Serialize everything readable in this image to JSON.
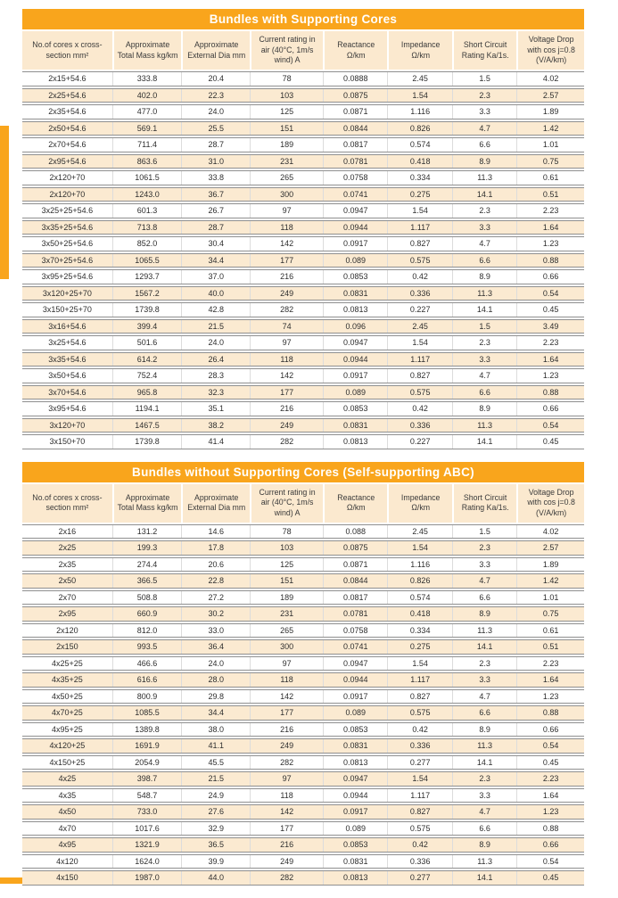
{
  "styles": {
    "accent_orange": "#F9A51C",
    "header_cream": "#FBE9CF",
    "row_cream": "#FBEAD1",
    "title_text": "#FFFFFF",
    "body_text": "#2E2E2E"
  },
  "tables": [
    {
      "title": "Bundles with Supporting Cores",
      "columns": [
        "No.of cores x cross-section mm²",
        "Approximate Total Mass kg/km",
        "Approximate External Dia mm",
        "Current rating in air (40°C, 1m/s wind) A",
        "Reactance Ω/km",
        "Impedance Ω/km",
        "Short Circuit Rating Ka/1s.",
        "Voltage Drop with cos j=0.8 (V/A/km)"
      ],
      "rows": [
        [
          "2x15+54.6",
          "333.8",
          "20.4",
          "78",
          "0.0888",
          "2.45",
          "1.5",
          "4.02"
        ],
        [
          "2x25+54.6",
          "402.0",
          "22.3",
          "103",
          "0.0875",
          "1.54",
          "2.3",
          "2.57"
        ],
        [
          "2x35+54.6",
          "477.0",
          "24.0",
          "125",
          "0.0871",
          "1.116",
          "3.3",
          "1.89"
        ],
        [
          "2x50+54.6",
          "569.1",
          "25.5",
          "151",
          "0.0844",
          "0.826",
          "4.7",
          "1.42"
        ],
        [
          "2x70+54.6",
          "711.4",
          "28.7",
          "189",
          "0.0817",
          "0.574",
          "6.6",
          "1.01"
        ],
        [
          "2x95+54.6",
          "863.6",
          "31.0",
          "231",
          "0.0781",
          "0.418",
          "8.9",
          "0.75"
        ],
        [
          "2x120+70",
          "1061.5",
          "33.8",
          "265",
          "0.0758",
          "0.334",
          "11.3",
          "0.61"
        ],
        [
          "2x120+70",
          "1243.0",
          "36.7",
          "300",
          "0.0741",
          "0.275",
          "14.1",
          "0.51"
        ],
        [
          "3x25+25+54.6",
          "601.3",
          "26.7",
          "97",
          "0.0947",
          "1.54",
          "2.3",
          "2.23"
        ],
        [
          "3x35+25+54.6",
          "713.8",
          "28.7",
          "118",
          "0.0944",
          "1.117",
          "3.3",
          "1.64"
        ],
        [
          "3x50+25+54.6",
          "852.0",
          "30.4",
          "142",
          "0.0917",
          "0.827",
          "4.7",
          "1.23"
        ],
        [
          "3x70+25+54.6",
          "1065.5",
          "34.4",
          "177",
          "0.089",
          "0.575",
          "6.6",
          "0.88"
        ],
        [
          "3x95+25+54.6",
          "1293.7",
          "37.0",
          "216",
          "0.0853",
          "0.42",
          "8.9",
          "0.66"
        ],
        [
          "3x120+25+70",
          "1567.2",
          "40.0",
          "249",
          "0.0831",
          "0.336",
          "11.3",
          "0.54"
        ],
        [
          "3x150+25+70",
          "1739.8",
          "42.8",
          "282",
          "0.0813",
          "0.227",
          "14.1",
          "0.45"
        ],
        [
          "3x16+54.6",
          "399.4",
          "21.5",
          "74",
          "0.096",
          "2.45",
          "1.5",
          "3.49"
        ],
        [
          "3x25+54.6",
          "501.6",
          "24.0",
          "97",
          "0.0947",
          "1.54",
          "2.3",
          "2.23"
        ],
        [
          "3x35+54.6",
          "614.2",
          "26.4",
          "118",
          "0.0944",
          "1.117",
          "3.3",
          "1.64"
        ],
        [
          "3x50+54.6",
          "752.4",
          "28.3",
          "142",
          "0.0917",
          "0.827",
          "4.7",
          "1.23"
        ],
        [
          "3x70+54.6",
          "965.8",
          "32.3",
          "177",
          "0.089",
          "0.575",
          "6.6",
          "0.88"
        ],
        [
          "3x95+54.6",
          "1194.1",
          "35.1",
          "216",
          "0.0853",
          "0.42",
          "8.9",
          "0.66"
        ],
        [
          "3x120+70",
          "1467.5",
          "38.2",
          "249",
          "0.0831",
          "0.336",
          "11.3",
          "0.54"
        ],
        [
          "3x150+70",
          "1739.8",
          "41.4",
          "282",
          "0.0813",
          "0.227",
          "14.1",
          "0.45"
        ]
      ]
    },
    {
      "title": "Bundles without Supporting Cores (Self-supporting ABC)",
      "columns": [
        "No.of cores x cross-section mm²",
        "Approximate Total Mass kg/km",
        "Approximate External Dia mm",
        "Current rating in air (40°C, 1m/s wind) A",
        "Reactance Ω/km",
        "Impedance Ω/km",
        "Short Circuit Rating Ka/1s.",
        "Voltage Drop with cos j=0.8 (V/A/km)"
      ],
      "rows": [
        [
          "2x16",
          "131.2",
          "14.6",
          "78",
          "0.088",
          "2.45",
          "1.5",
          "4.02"
        ],
        [
          "2x25",
          "199.3",
          "17.8",
          "103",
          "0.0875",
          "1.54",
          "2.3",
          "2.57"
        ],
        [
          "2x35",
          "274.4",
          "20.6",
          "125",
          "0.0871",
          "1.116",
          "3.3",
          "1.89"
        ],
        [
          "2x50",
          "366.5",
          "22.8",
          "151",
          "0.0844",
          "0.826",
          "4.7",
          "1.42"
        ],
        [
          "2x70",
          "508.8",
          "27.2",
          "189",
          "0.0817",
          "0.574",
          "6.6",
          "1.01"
        ],
        [
          "2x95",
          "660.9",
          "30.2",
          "231",
          "0.0781",
          "0.418",
          "8.9",
          "0.75"
        ],
        [
          "2x120",
          "812.0",
          "33.0",
          "265",
          "0.0758",
          "0.334",
          "11.3",
          "0.61"
        ],
        [
          "2x150",
          "993.5",
          "36.4",
          "300",
          "0.0741",
          "0.275",
          "14.1",
          "0.51"
        ],
        [
          "4x25+25",
          "466.6",
          "24.0",
          "97",
          "0.0947",
          "1.54",
          "2.3",
          "2.23"
        ],
        [
          "4x35+25",
          "616.6",
          "28.0",
          "118",
          "0.0944",
          "1.117",
          "3.3",
          "1.64"
        ],
        [
          "4x50+25",
          "800.9",
          "29.8",
          "142",
          "0.0917",
          "0.827",
          "4.7",
          "1.23"
        ],
        [
          "4x70+25",
          "1085.5",
          "34.4",
          "177",
          "0.089",
          "0.575",
          "6.6",
          "0.88"
        ],
        [
          "4x95+25",
          "1389.8",
          "38.0",
          "216",
          "0.0853",
          "0.42",
          "8.9",
          "0.66"
        ],
        [
          "4x120+25",
          "1691.9",
          "41.1",
          "249",
          "0.0831",
          "0.336",
          "11.3",
          "0.54"
        ],
        [
          "4x150+25",
          "2054.9",
          "45.5",
          "282",
          "0.0813",
          "0.277",
          "14.1",
          "0.45"
        ],
        [
          "4x25",
          "398.7",
          "21.5",
          "97",
          "0.0947",
          "1.54",
          "2.3",
          "2.23"
        ],
        [
          "4x35",
          "548.7",
          "24.9",
          "118",
          "0.0944",
          "1.117",
          "3.3",
          "1.64"
        ],
        [
          "4x50",
          "733.0",
          "27.6",
          "142",
          "0.0917",
          "0.827",
          "4.7",
          "1.23"
        ],
        [
          "4x70",
          "1017.6",
          "32.9",
          "177",
          "0.089",
          "0.575",
          "6.6",
          "0.88"
        ],
        [
          "4x95",
          "1321.9",
          "36.5",
          "216",
          "0.0853",
          "0.42",
          "8.9",
          "0.66"
        ],
        [
          "4x120",
          "1624.0",
          "39.9",
          "249",
          "0.0831",
          "0.336",
          "11.3",
          "0.54"
        ],
        [
          "4x150",
          "1987.0",
          "44.0",
          "282",
          "0.0813",
          "0.277",
          "14.1",
          "0.45"
        ]
      ]
    }
  ]
}
